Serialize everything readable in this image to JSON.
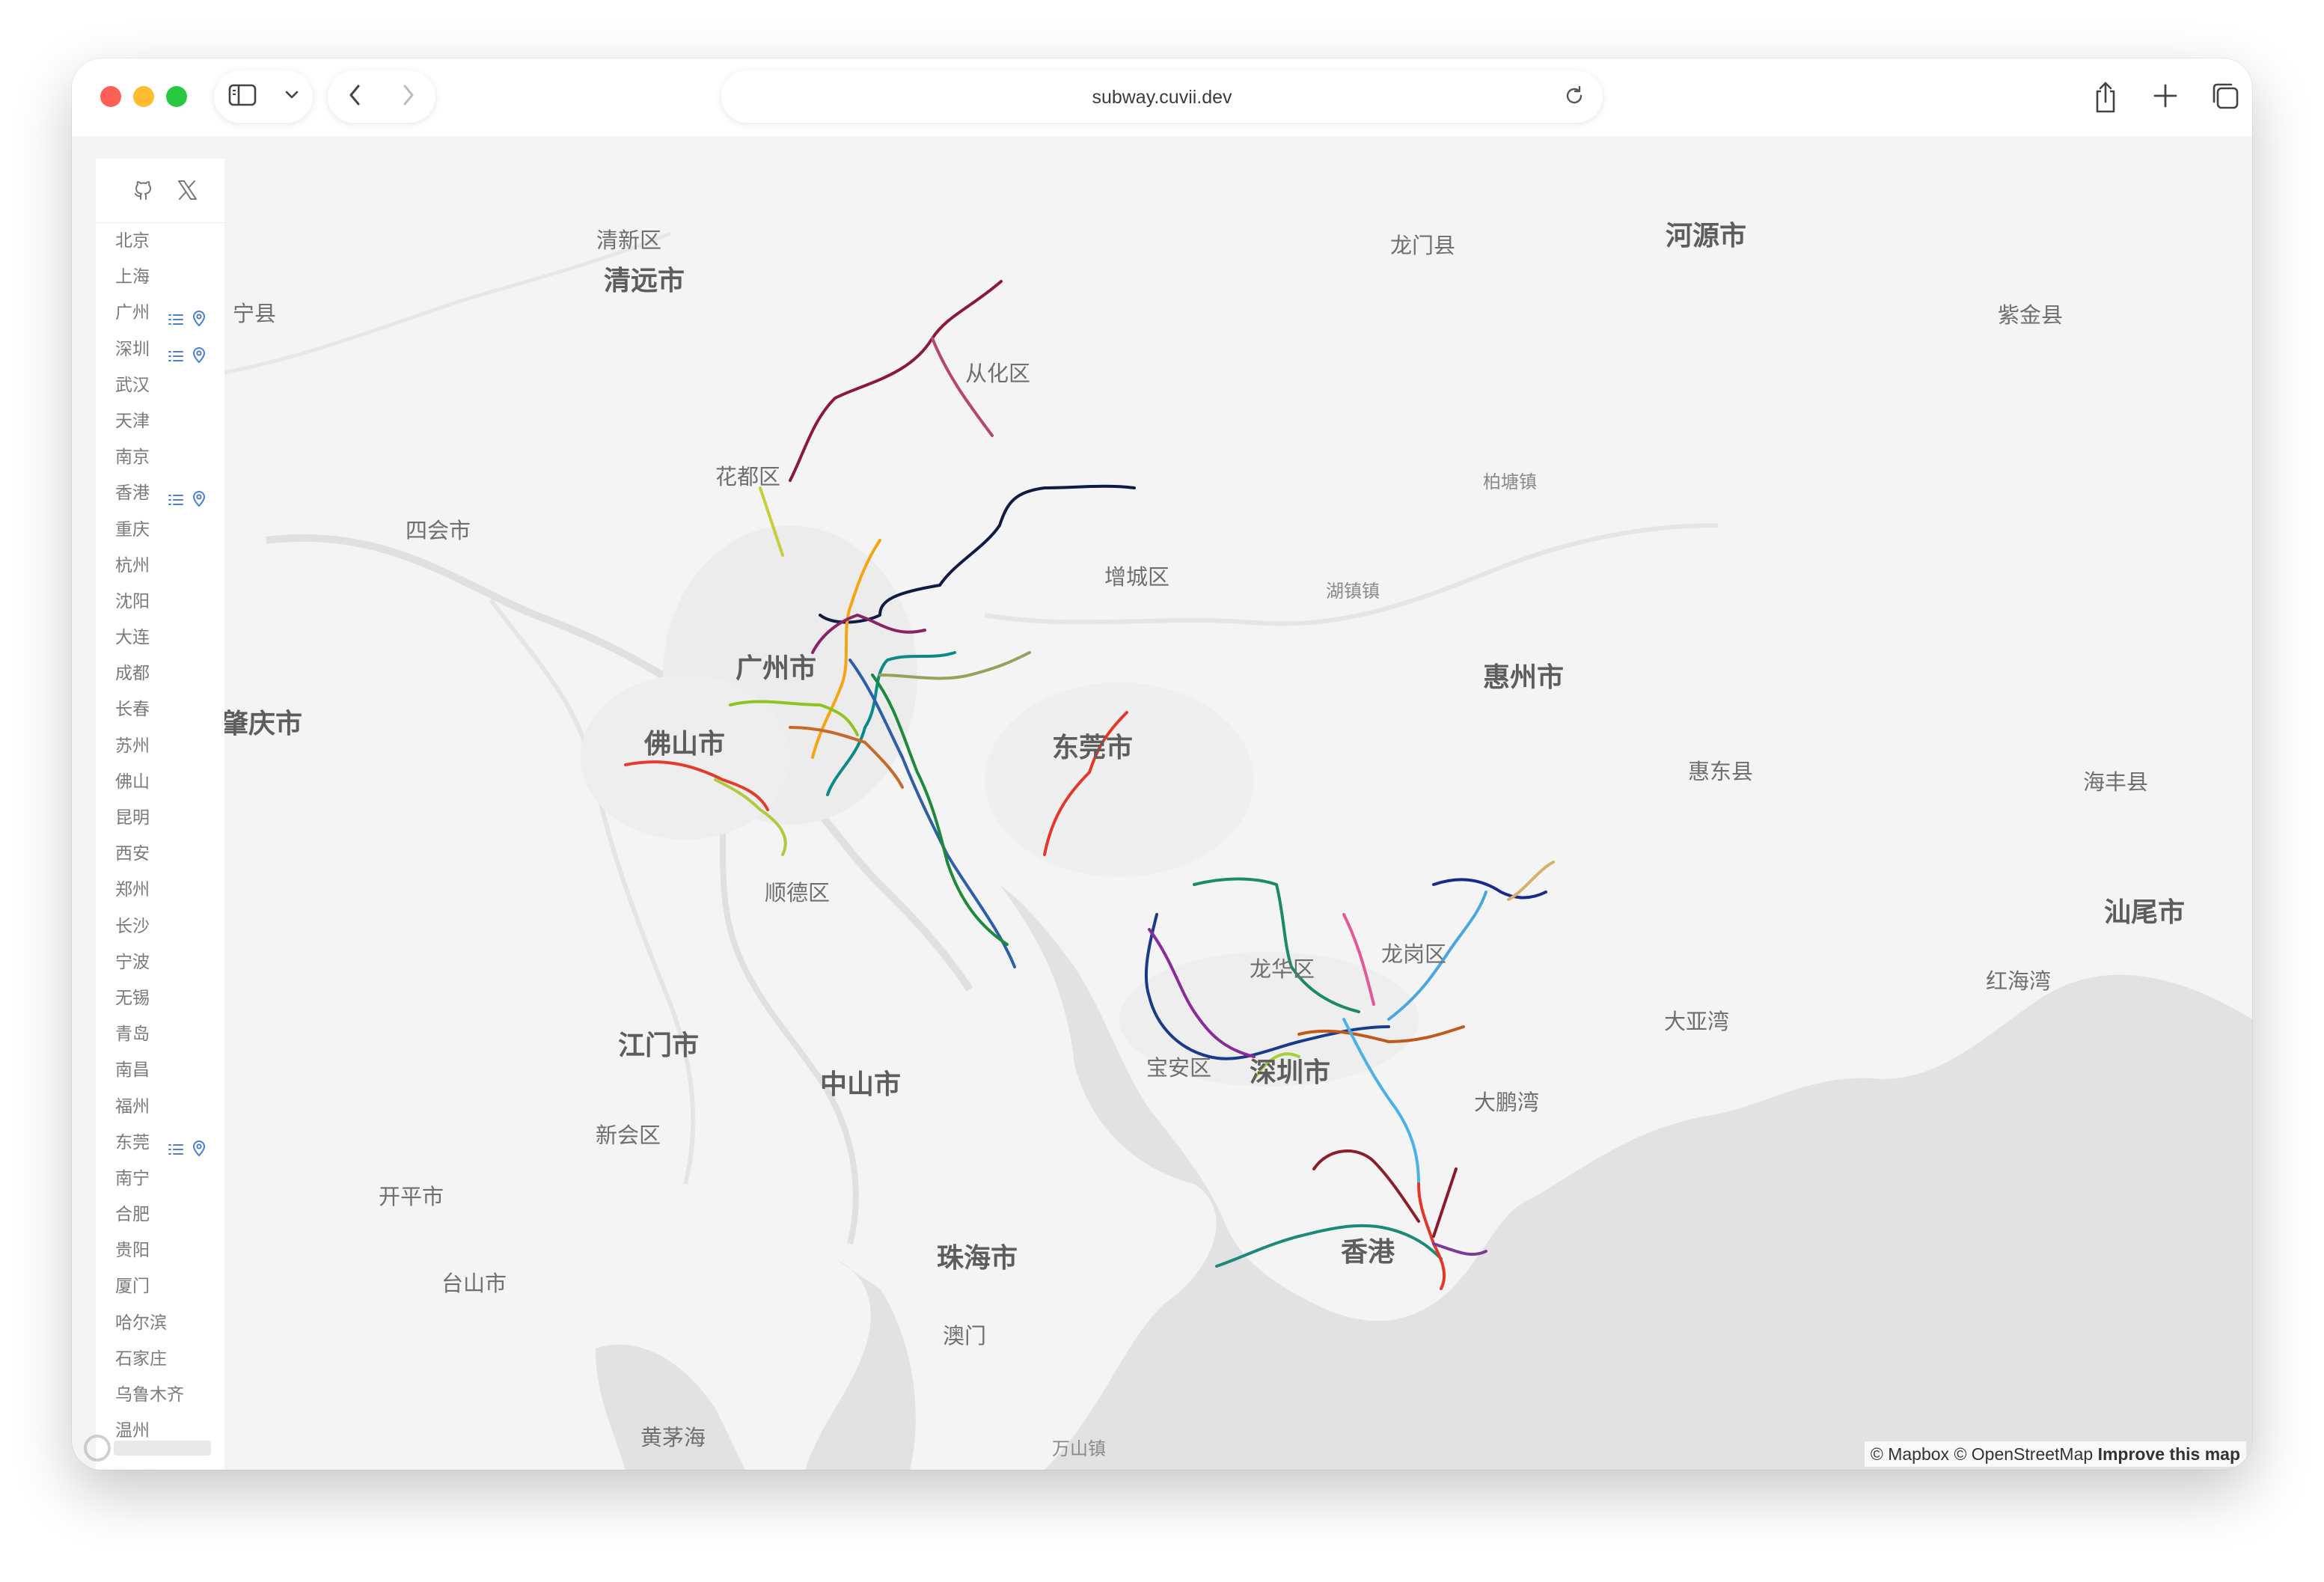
{
  "browser": {
    "url": "subway.cuvii.dev"
  },
  "sidebar": {
    "cities": [
      {
        "name": "北京",
        "has_actions": false
      },
      {
        "name": "上海",
        "has_actions": false
      },
      {
        "name": "广州",
        "has_actions": true
      },
      {
        "name": "深圳",
        "has_actions": true
      },
      {
        "name": "武汉",
        "has_actions": false
      },
      {
        "name": "天津",
        "has_actions": false
      },
      {
        "name": "南京",
        "has_actions": false
      },
      {
        "name": "香港",
        "has_actions": true
      },
      {
        "name": "重庆",
        "has_actions": false
      },
      {
        "name": "杭州",
        "has_actions": false
      },
      {
        "name": "沈阳",
        "has_actions": false
      },
      {
        "name": "大连",
        "has_actions": false
      },
      {
        "name": "成都",
        "has_actions": false
      },
      {
        "name": "长春",
        "has_actions": false
      },
      {
        "name": "苏州",
        "has_actions": false
      },
      {
        "name": "佛山",
        "has_actions": false
      },
      {
        "name": "昆明",
        "has_actions": false
      },
      {
        "name": "西安",
        "has_actions": false
      },
      {
        "name": "郑州",
        "has_actions": false
      },
      {
        "name": "长沙",
        "has_actions": false
      },
      {
        "name": "宁波",
        "has_actions": false
      },
      {
        "name": "无锡",
        "has_actions": false
      },
      {
        "name": "青岛",
        "has_actions": false
      },
      {
        "name": "南昌",
        "has_actions": false
      },
      {
        "name": "福州",
        "has_actions": false
      },
      {
        "name": "东莞",
        "has_actions": true
      },
      {
        "name": "南宁",
        "has_actions": false
      },
      {
        "name": "合肥",
        "has_actions": false
      },
      {
        "name": "贵阳",
        "has_actions": false
      },
      {
        "name": "厦门",
        "has_actions": false
      },
      {
        "name": "哈尔滨",
        "has_actions": false
      },
      {
        "name": "石家庄",
        "has_actions": false
      },
      {
        "name": "乌鲁木齐",
        "has_actions": false
      },
      {
        "name": "温州",
        "has_actions": false
      }
    ]
  },
  "map": {
    "labels": {
      "qingxin": "清新区",
      "qingyuan": "清远市",
      "longmen": "龙门县",
      "heyuan": "河源市",
      "ningxian": "宁县",
      "zijin": "紫金县",
      "conghua": "从化区",
      "huadu": "花都区",
      "sihui": "四会市",
      "baitang": "柏塘镇",
      "zengcheng": "增城区",
      "huxi": "湖镇镇",
      "guangzhou": "广州市",
      "zhaoqing": "肇庆市",
      "huizhou": "惠州市",
      "foshan": "佛山市",
      "dongguan": "东莞市",
      "huidong": "惠东县",
      "haifeng": "海丰县",
      "shunde": "顺德区",
      "shanwei": "汕尾市",
      "longhua": "龙华区",
      "longgang": "龙岗区",
      "honghaiwan": "红海湾",
      "dayawan": "大亚湾",
      "jiangmen": "江门市",
      "zhongshan": "中山市",
      "baoan": "宝安区",
      "shenzhen": "深圳市",
      "dapengwan": "大鹏湾",
      "xinhui": "新会区",
      "kaiping": "开平市",
      "taishan": "台山市",
      "zhuhai": "珠海市",
      "hongkong": "香港",
      "macau": "澳门",
      "huangmaohai": "黄茅海",
      "wanshan": "万山镇"
    },
    "attribution": {
      "mapbox": "© Mapbox",
      "osm": "© OpenStreetMap",
      "improve": "Improve this map"
    },
    "colors": {
      "water": "#e2e2e2",
      "land": "#f4f4f4"
    }
  }
}
